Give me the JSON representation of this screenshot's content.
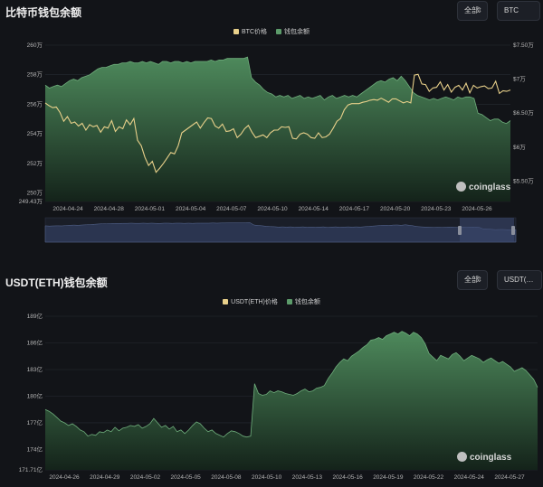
{
  "panels": [
    {
      "title": "比特币钱包余额",
      "filter_all": "全部",
      "asset": "BTC",
      "legend_price": "BTC价格",
      "legend_balance": "钱包余额"
    },
    {
      "title": "USDT(ETH)钱包余额",
      "filter_all": "全部",
      "asset": "USDT(…",
      "legend_price": "USDT(ETH)价格",
      "legend_balance": "钱包余额"
    }
  ],
  "brand": "coinglass",
  "icons": {
    "chevron": "chevron-updown-icon",
    "logo": "coinglass-logo-icon"
  },
  "colors": {
    "price": "#e8d08a",
    "balance": "#5c9b6a",
    "background": "#121418"
  },
  "chart_data": [
    {
      "type": "area",
      "title": "比特币钱包余额",
      "x_ticks": [
        "2024-04-24",
        "2024-04-28",
        "2024-05-01",
        "2024-05-04",
        "2024-05-07",
        "2024-05-10",
        "2024-05-14",
        "2024-05-17",
        "2024-05-20",
        "2024-05-23",
        "2024-05-26"
      ],
      "y_left_ticks": [
        "260万",
        "258万",
        "256万",
        "254万",
        "252万",
        "250万",
        "249.43万"
      ],
      "y_left_range": [
        249.43,
        260
      ],
      "y_right_ticks": [
        "$7.50万",
        "$7万",
        "$6.50万",
        "$6万",
        "$5.50万"
      ],
      "y_right_range": [
        5.2,
        7.5
      ],
      "grid": true,
      "legend_position": "top-center",
      "series": [
        {
          "name": "钱包余额",
          "axis": "left",
          "kind": "area",
          "values": [
            257.3,
            257.1,
            257.2,
            257.3,
            257.2,
            257.4,
            257.6,
            257.7,
            257.6,
            257.8,
            257.9,
            258.0,
            258.2,
            258.4,
            258.5,
            258.5,
            258.6,
            258.7,
            258.7,
            258.8,
            258.8,
            258.9,
            258.8,
            258.8,
            258.9,
            258.8,
            258.9,
            258.8,
            258.7,
            258.9,
            258.9,
            258.8,
            258.9,
            258.9,
            258.8,
            258.9,
            258.8,
            258.9,
            258.9,
            258.9,
            258.9,
            259.0,
            258.9,
            259.0,
            259.0,
            259.1,
            259.1,
            259.1,
            259.1,
            259.1,
            259.2,
            257.8,
            257.5,
            257.3,
            257.0,
            256.8,
            256.7,
            256.5,
            256.6,
            256.5,
            256.6,
            256.4,
            256.5,
            256.6,
            256.4,
            256.5,
            256.4,
            256.5,
            256.6,
            256.3,
            256.5,
            256.6,
            256.4,
            256.5,
            256.6,
            256.5,
            256.6,
            256.5,
            256.7,
            256.9,
            257.1,
            257.3,
            257.5,
            257.6,
            257.5,
            257.7,
            257.8,
            257.6,
            257.9,
            257.6,
            257.2,
            256.8,
            256.6,
            256.5,
            256.4,
            256.3,
            256.4,
            256.3,
            256.4,
            256.5,
            256.4,
            256.3,
            256.5,
            256.4,
            256.5,
            256.5,
            256.4,
            255.4,
            255.3,
            255.1,
            254.9,
            255.0,
            255.0,
            254.8,
            254.7,
            254.9
          ]
        },
        {
          "name": "BTC价格",
          "axis": "right",
          "kind": "line",
          "values": [
            6.65,
            6.61,
            6.58,
            6.59,
            6.51,
            6.38,
            6.45,
            6.35,
            6.37,
            6.31,
            6.35,
            6.25,
            6.33,
            6.3,
            6.32,
            6.22,
            6.3,
            6.28,
            6.39,
            6.23,
            6.3,
            6.27,
            6.4,
            6.33,
            6.42,
            6.1,
            6.02,
            5.85,
            5.73,
            5.79,
            5.63,
            5.69,
            5.76,
            5.84,
            5.92,
            5.9,
            6.02,
            6.21,
            6.25,
            6.29,
            6.33,
            6.37,
            6.28,
            6.36,
            6.43,
            6.42,
            6.31,
            6.28,
            6.34,
            6.23,
            6.24,
            6.27,
            6.14,
            6.19,
            6.27,
            6.32,
            6.22,
            6.14,
            6.16,
            6.18,
            6.14,
            6.21,
            6.25,
            6.25,
            6.3,
            6.29,
            6.3,
            6.13,
            6.12,
            6.19,
            6.21,
            6.19,
            6.14,
            6.13,
            6.21,
            6.14,
            6.15,
            6.19,
            6.28,
            6.38,
            6.42,
            6.55,
            6.62,
            6.64,
            6.64,
            6.64,
            6.66,
            6.67,
            6.69,
            6.7,
            6.69,
            6.72,
            6.69,
            6.66,
            6.71,
            6.71,
            6.68,
            6.65,
            6.67,
            6.65,
            7.06,
            7.07,
            6.93,
            6.92,
            6.82,
            6.87,
            6.88,
            6.96,
            6.84,
            6.92,
            6.81,
            6.88,
            6.91,
            6.84,
            6.94,
            6.8,
            6.91,
            6.87,
            6.89,
            6.9,
            6.86,
            6.87,
            6.97,
            6.79,
            6.83,
            6.82,
            6.84
          ]
        }
      ]
    },
    {
      "type": "area",
      "title": "USDT(ETH)钱包余额",
      "x_ticks": [
        "2024-04-26",
        "2024-04-29",
        "2024-05-02",
        "2024-05-05",
        "2024-05-08",
        "2024-05-10",
        "2024-05-13",
        "2024-05-16",
        "2024-05-19",
        "2024-05-22",
        "2024-05-24",
        "2024-05-27"
      ],
      "y_left_ticks": [
        "189亿",
        "186亿",
        "183亿",
        "180亿",
        "177亿",
        "174亿",
        "171.71亿"
      ],
      "y_left_range": [
        171.71,
        189
      ],
      "grid": true,
      "legend_position": "top-center",
      "series": [
        {
          "name": "钱包余额",
          "axis": "left",
          "kind": "area",
          "values": [
            178.5,
            178.3,
            178.0,
            177.6,
            177.2,
            177.0,
            176.7,
            176.9,
            176.6,
            176.2,
            176.0,
            175.5,
            175.7,
            175.6,
            176.0,
            175.9,
            176.2,
            176.0,
            176.5,
            176.1,
            176.4,
            176.5,
            176.7,
            176.6,
            176.8,
            176.4,
            176.6,
            176.9,
            177.5,
            177.0,
            176.5,
            176.7,
            176.3,
            176.6,
            176.0,
            176.2,
            175.8,
            176.2,
            176.7,
            177.1,
            176.9,
            176.4,
            176.0,
            176.2,
            175.8,
            175.6,
            175.4,
            175.8,
            176.1,
            176.0,
            175.8,
            175.5,
            175.4,
            175.5,
            181.4,
            180.3,
            180.1,
            180.2,
            180.6,
            180.4,
            180.6,
            180.5,
            180.3,
            180.2,
            180.1,
            180.3,
            180.6,
            180.8,
            180.5,
            180.6,
            180.9,
            181.0,
            181.2,
            182.0,
            182.6,
            183.3,
            183.8,
            184.2,
            184.0,
            184.5,
            184.8,
            185.1,
            185.5,
            185.8,
            186.3,
            186.4,
            186.6,
            186.4,
            186.8,
            187.0,
            187.2,
            187.0,
            187.3,
            187.1,
            186.8,
            187.2,
            187.0,
            186.6,
            185.9,
            184.8,
            184.4,
            184.0,
            184.6,
            184.4,
            184.2,
            184.7,
            184.9,
            184.5,
            184.0,
            184.3,
            184.6,
            184.4,
            184.2,
            183.8,
            184.1,
            184.3,
            184.0,
            183.7,
            183.9,
            183.6,
            183.3,
            182.8,
            183.0,
            183.2,
            182.9,
            182.4,
            181.9,
            181.0
          ]
        }
      ]
    }
  ]
}
